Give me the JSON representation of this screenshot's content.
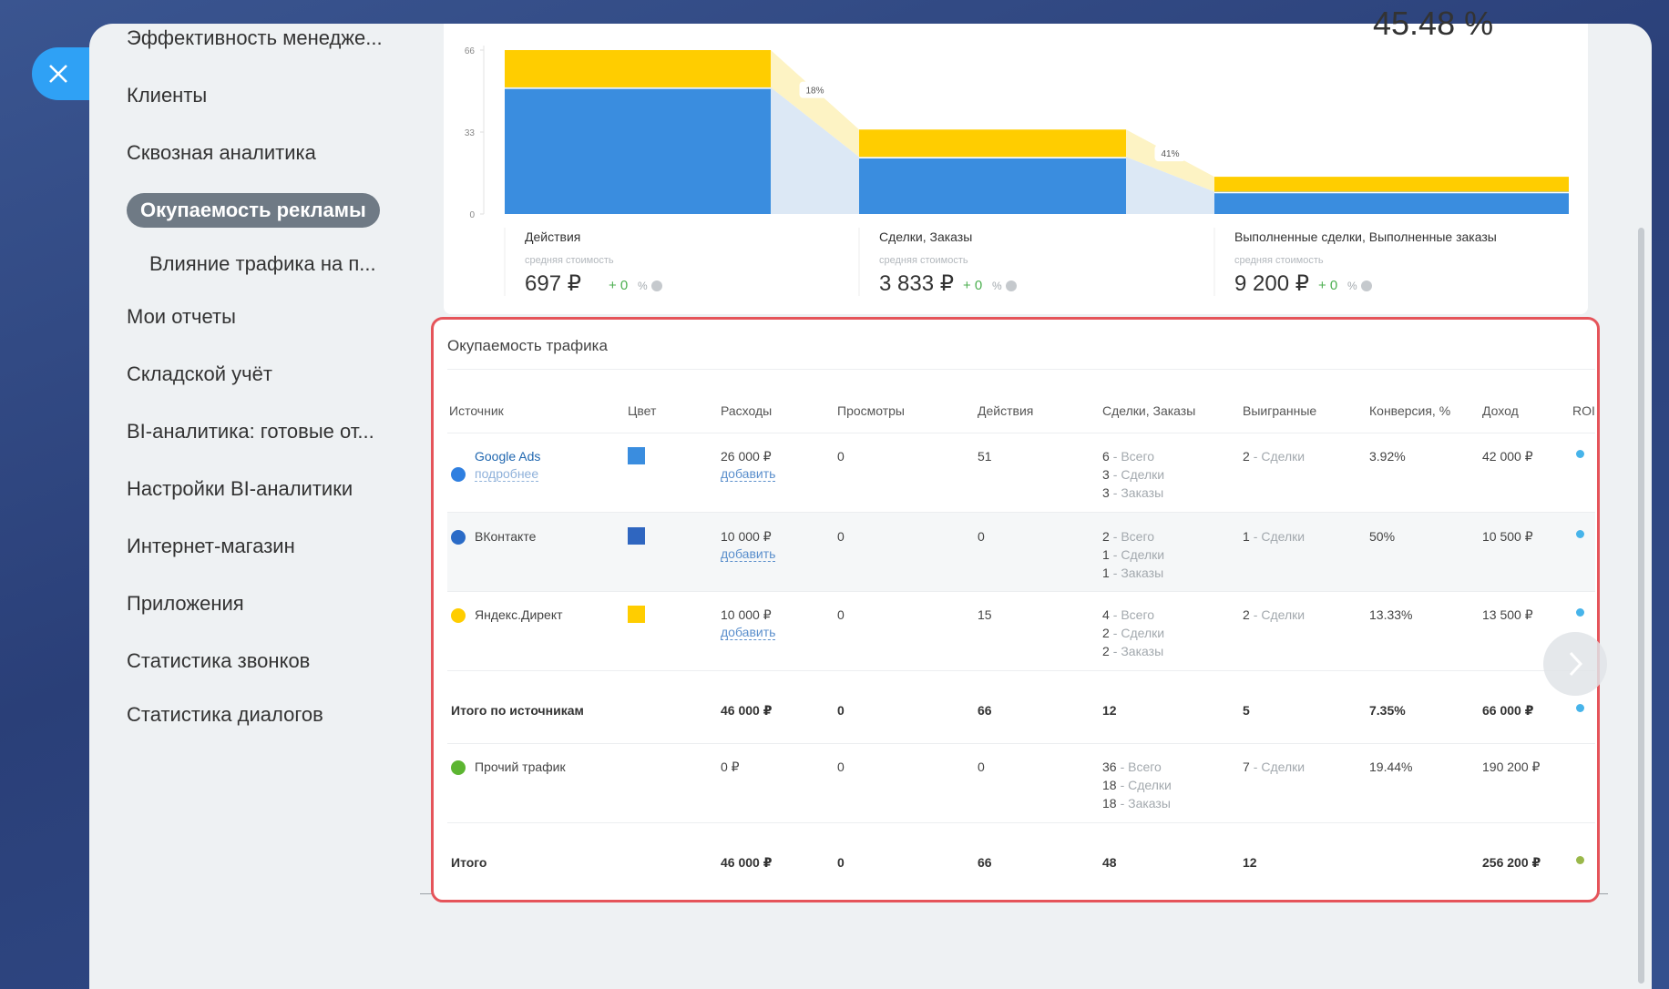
{
  "sidebar": {
    "items": [
      "Эффективность менедже...",
      "Клиенты",
      "Сквозная аналитика",
      "Окупаемость рекламы",
      "Влияние трафика на п...",
      "Мои отчеты",
      "Складской учёт",
      "BI-аналитика: готовые от...",
      "Настройки BI-аналитики",
      "Интернет-магазин",
      "Приложения",
      "Статистика звонков",
      "Статистика диалогов"
    ],
    "active": 3,
    "subitems": [
      4
    ]
  },
  "funnel": {
    "type": "bar",
    "stacked": true,
    "headline": "45.48 %",
    "ylim": [
      0,
      66
    ],
    "yticks": [
      0,
      33,
      66
    ],
    "series": [
      {
        "color": "#3a8ddf",
        "values": [
          51,
          23,
          9
        ]
      },
      {
        "color": "#ffcd00",
        "values": [
          15,
          11,
          6
        ]
      }
    ],
    "stages": [
      "Действия",
      "Сделки, Заказы",
      "Выполненные сделки, Выполненные заказы"
    ],
    "cost_label": "средняя стоимость",
    "costs": [
      "697 ₽",
      "3 833 ₽",
      "9 200 ₽"
    ],
    "change": "+ 0",
    "change_unit": "%",
    "conversions": [
      "18%",
      "41%"
    ]
  },
  "table": {
    "title": "Окупаемость трафика",
    "columns": [
      "Источник",
      "Цвет",
      "Расходы",
      "Просмотры",
      "Действия",
      "Сделки, Заказы",
      "Выигранные",
      "Конверсия, %",
      "Доход",
      "ROI"
    ],
    "rows": [
      {
        "source": "Google Ads",
        "link": "подробнее",
        "icon_color": "#2f7fe0",
        "color": "#3a8ddf",
        "spend": "26 000 ₽",
        "spend_link": "добавить",
        "views": "0",
        "actions": "51",
        "deals": [
          {
            "count": "6",
            "label": "- Всего"
          },
          {
            "count": "3",
            "label": "- Сделки"
          },
          {
            "count": "3",
            "label": "- Заказы"
          }
        ],
        "won": {
          "count": "2",
          "label": "- Сделки"
        },
        "conversion": "3.92%",
        "income": "42 000 ₽",
        "roi_color": "#47b4ea"
      },
      {
        "source": "ВКонтакте",
        "icon_color": "#2a6bc7",
        "color": "#2f66c0",
        "spend": "10 000 ₽",
        "spend_link": "добавить",
        "views": "0",
        "actions": "0",
        "deals": [
          {
            "count": "2",
            "label": "- Всего"
          },
          {
            "count": "1",
            "label": "- Сделки"
          },
          {
            "count": "1",
            "label": "- Заказы"
          }
        ],
        "won": {
          "count": "1",
          "label": "- Сделки"
        },
        "conversion": "50%",
        "income": "10 500 ₽",
        "roi_color": "#47b4ea"
      },
      {
        "source": "Яндекс.Директ",
        "icon_color": "#ffcd00",
        "color": "#ffcd00",
        "spend": "10 000 ₽",
        "spend_link": "добавить",
        "views": "0",
        "actions": "15",
        "deals": [
          {
            "count": "4",
            "label": "- Всего"
          },
          {
            "count": "2",
            "label": "- Сделки"
          },
          {
            "count": "2",
            "label": "- Заказы"
          }
        ],
        "won": {
          "count": "2",
          "label": "- Сделки"
        },
        "conversion": "13.33%",
        "income": "13 500 ₽",
        "roi_color": "#47b4ea"
      },
      {
        "source": "Итого по источникам",
        "total": true,
        "spend": "46 000 ₽",
        "views": "0",
        "actions": "66",
        "deals": [
          {
            "count": "12"
          }
        ],
        "won": {
          "count": "5"
        },
        "conversion": "7.35%",
        "income": "66 000 ₽",
        "roi_color": "#47b4ea"
      },
      {
        "source": "Прочий трафик",
        "icon_color": "#5cb531",
        "spend": "0 ₽",
        "views": "0",
        "actions": "0",
        "deals": [
          {
            "count": "36",
            "label": "- Всего"
          },
          {
            "count": "18",
            "label": "- Сделки"
          },
          {
            "count": "18",
            "label": "- Заказы"
          }
        ],
        "won": {
          "count": "7",
          "label": "- Сделки"
        },
        "conversion": "19.44%",
        "income": "190 200 ₽"
      },
      {
        "source": "Итого",
        "total": true,
        "spend": "46 000 ₽",
        "views": "0",
        "actions": "66",
        "deals": [
          {
            "count": "48"
          }
        ],
        "won": {
          "count": "12"
        },
        "income": "256 200 ₽",
        "roi_color": "#9ab84a"
      }
    ]
  }
}
